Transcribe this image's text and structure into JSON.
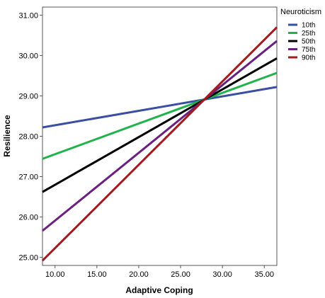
{
  "chart_data": {
    "type": "line",
    "xlabel": "Adaptive Coping",
    "ylabel": "Resilience",
    "xlim": [
      8.5,
      36.5
    ],
    "ylim": [
      24.8,
      31.2
    ],
    "x_ticks": [
      "10.00",
      "15.00",
      "20.00",
      "25.00",
      "30.00",
      "35.00"
    ],
    "y_ticks": [
      "25.00",
      "26.00",
      "27.00",
      "28.00",
      "29.00",
      "30.00",
      "31.00"
    ],
    "legend_title": "Neuroticism",
    "legend_position": "top-right",
    "grid": false,
    "x": [
      8.5,
      36.5
    ],
    "series": [
      {
        "name": "10th",
        "color": "#3a4fa3",
        "values": [
          28.22,
          29.22
        ]
      },
      {
        "name": "25th",
        "color": "#22b24c",
        "values": [
          27.44,
          29.57
        ]
      },
      {
        "name": "50th",
        "color": "#000000",
        "values": [
          26.62,
          29.93
        ]
      },
      {
        "name": "75th",
        "color": "#6b2080",
        "values": [
          25.66,
          30.36
        ]
      },
      {
        "name": "90th",
        "color": "#a31a1f",
        "values": [
          24.92,
          30.7
        ]
      }
    ]
  }
}
